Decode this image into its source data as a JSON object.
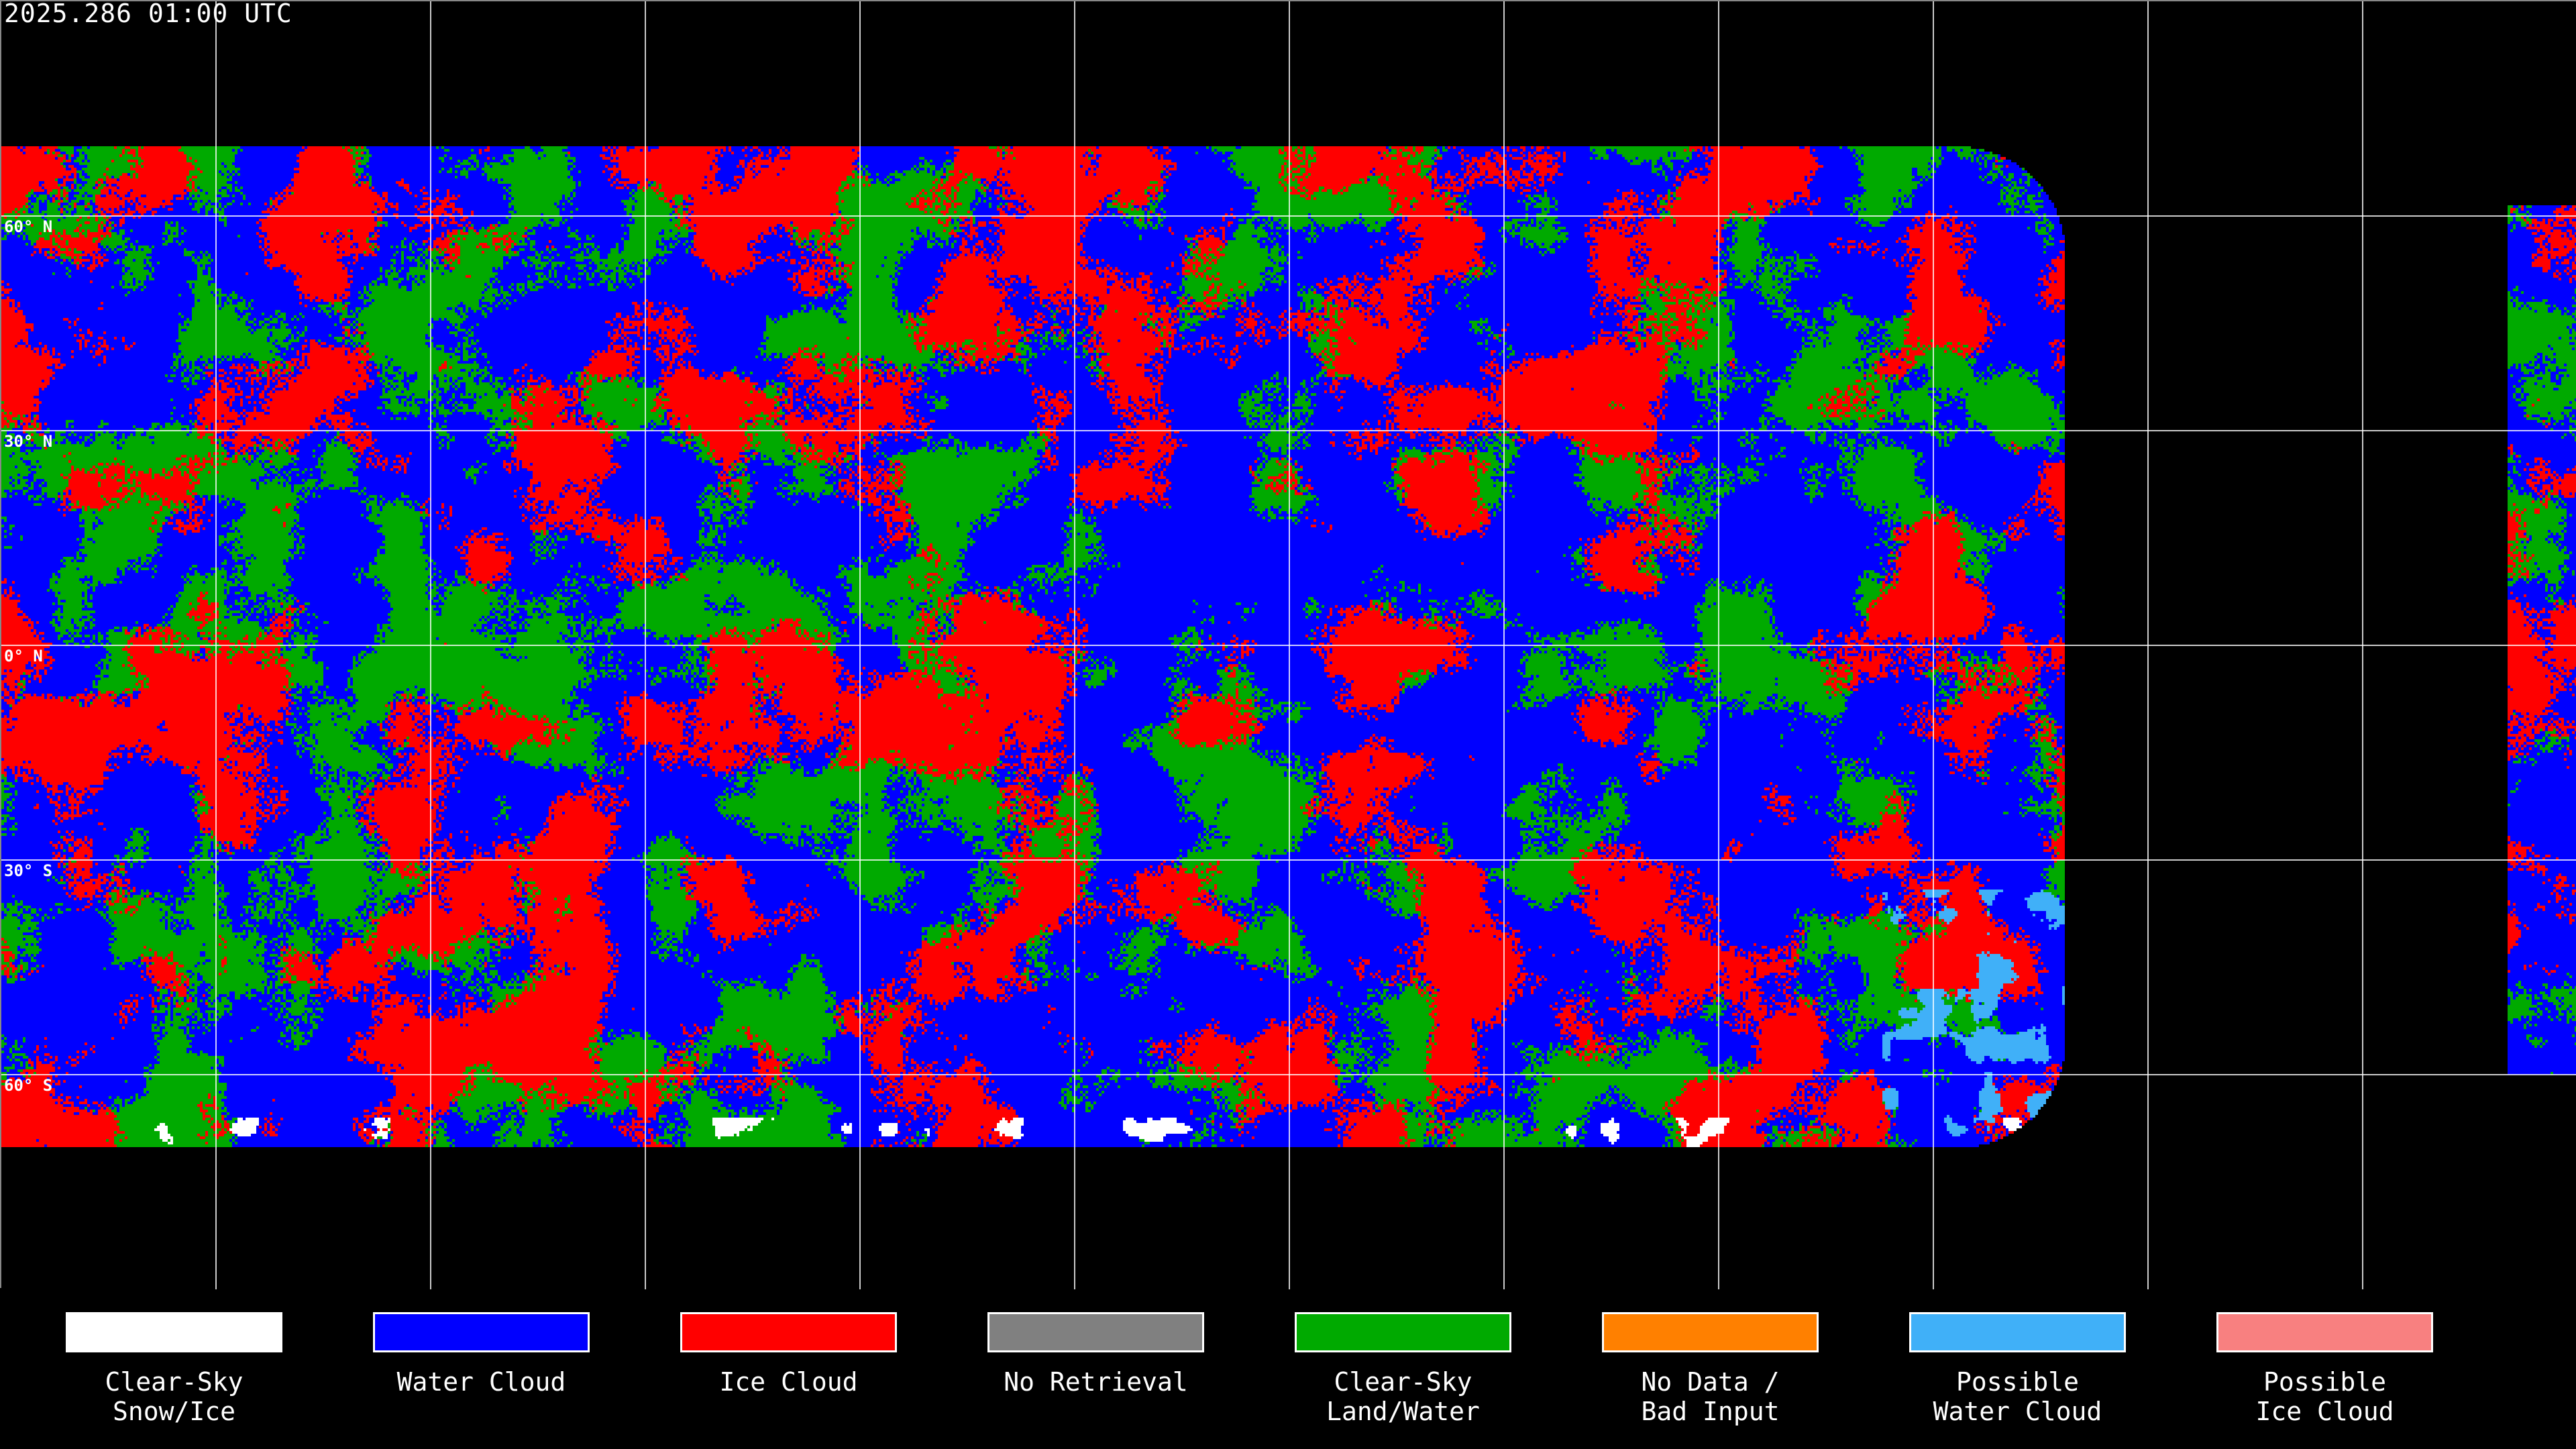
{
  "title": "2025.286 01:00 UTC",
  "lat_labels": [
    "60° N",
    "30° N",
    "0° N",
    "30° S",
    "60° S"
  ],
  "legend": [
    {
      "label": "Clear-Sky\nSnow/Ice",
      "color": "#ffffff"
    },
    {
      "label": "Water Cloud",
      "color": "#0000ff"
    },
    {
      "label": "Ice Cloud",
      "color": "#ff0000"
    },
    {
      "label": "No Retrieval",
      "color": "#808080"
    },
    {
      "label": "Clear-Sky\nLand/Water",
      "color": "#00aa00"
    },
    {
      "label": "No Data /\nBad Input",
      "color": "#ff8000"
    },
    {
      "label": "Possible\nWater Cloud",
      "color": "#40b0f8"
    },
    {
      "label": "Possible\nIce Cloud",
      "color": "#f88080"
    }
  ]
}
